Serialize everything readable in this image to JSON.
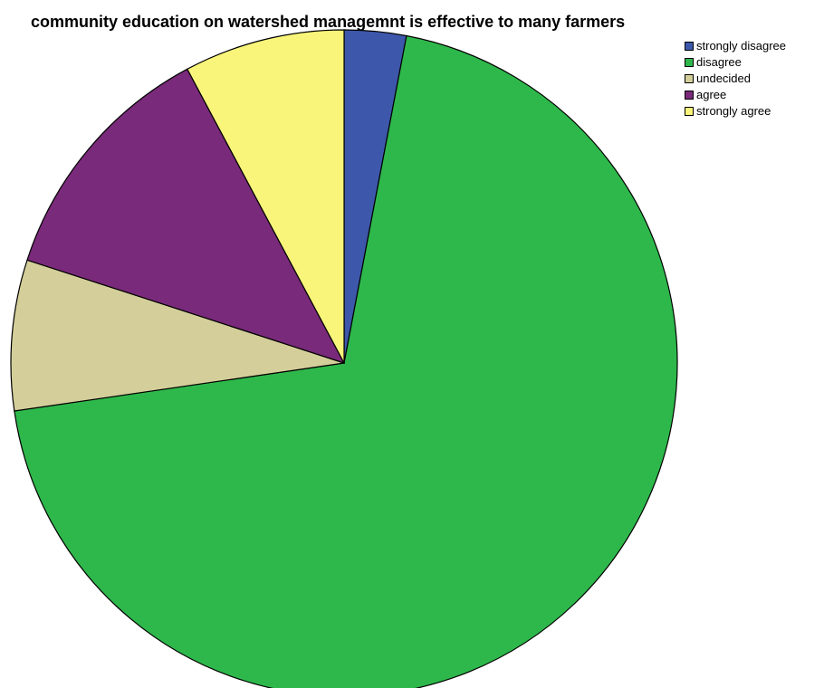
{
  "chart_data": {
    "type": "pie",
    "title": "community education on watershed managemnt is effective to many farmers",
    "legend_position": "top-right",
    "slices": [
      {
        "label": "strongly disagree",
        "value": 3.0,
        "color": "#3d58aa"
      },
      {
        "label": "disagree",
        "value": 69.7,
        "color": "#2eb84b"
      },
      {
        "label": "undecided",
        "value": 7.3,
        "color": "#d4cf9a"
      },
      {
        "label": "agree",
        "value": 12.2,
        "color": "#7a2a7a"
      },
      {
        "label": "strongly agree",
        "value": 7.8,
        "color": "#f9f57a"
      }
    ]
  }
}
